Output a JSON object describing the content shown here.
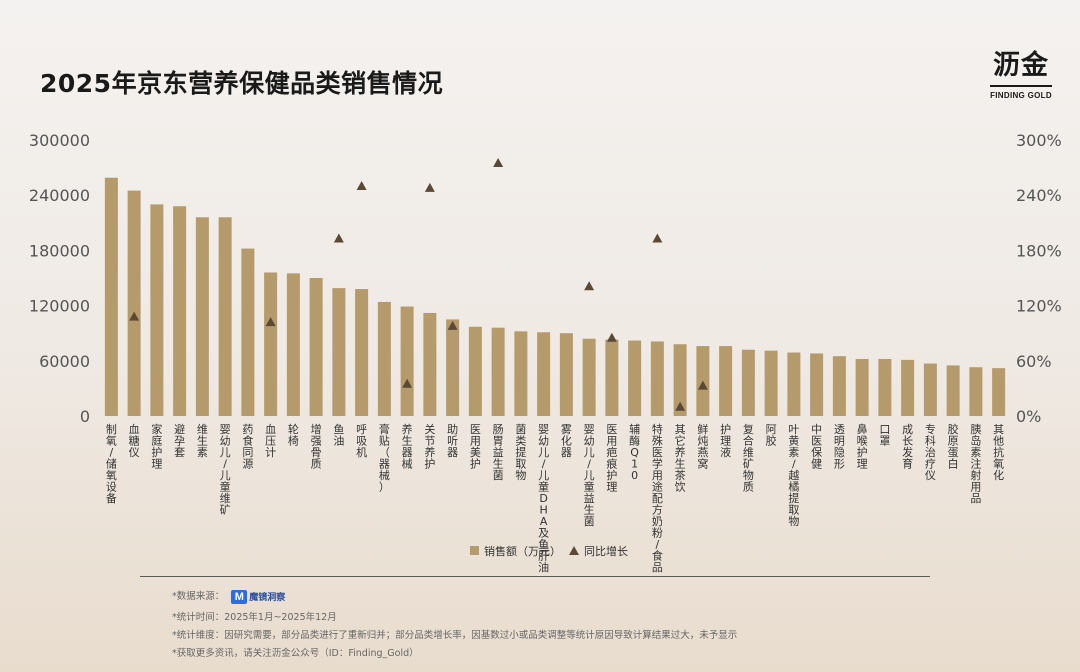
{
  "page": {
    "title": "2025年京东营养保健品类销售情况",
    "logo_main": "沥金",
    "logo_sub": "FINDING GOLD"
  },
  "footer": {
    "source_label": "*数据来源：",
    "source_name": "魔镜洞察",
    "period": "*统计时间：2025年1月~2025年12月",
    "dimension": "*统计维度：因研究需要，部分品类进行了重新归并；部分品类增长率，因基数过小或品类调整等统计原因导致计算结果过大，未予显示",
    "more": "*获取更多资讯，请关注沥金公众号（ID：Finding_Gold）"
  },
  "colors": {
    "bar": "#b59a6b",
    "marker": "#5a4a35",
    "axis_text": "#555555",
    "grid": "#d8d2ca"
  },
  "chart_data": {
    "type": "bar",
    "categories": [
      "制氧/储氧设备",
      "血糖仪",
      "家庭护理",
      "避孕套",
      "维生素",
      "婴幼儿/儿童维矿",
      "药食同源",
      "血压计",
      "轮椅",
      "增强骨质",
      "鱼油",
      "呼吸机",
      "膏贴（器械）",
      "养生器械",
      "关节养护",
      "助听器",
      "医用美护",
      "肠胃益生菌",
      "菌类提取物",
      "婴幼儿/儿童DHA及鱼肝油",
      "雾化器",
      "婴幼儿/儿童益生菌",
      "医用疤痕护理",
      "辅酶Q10",
      "特殊医学用途配方奶粉/食品",
      "其它养生茶饮",
      "鲜炖燕窝",
      "护理液",
      "复合维矿物质",
      "阿胶",
      "叶黄素/越橘提取物",
      "中医保健",
      "透明隐形",
      "鼻喉护理",
      "口罩",
      "成长发育",
      "专科治疗仪",
      "胶原蛋白",
      "胰岛素注射用品",
      "其他抗氧化"
    ],
    "series": [
      {
        "name": "销售额（万元）",
        "type": "bar",
        "axis": "left",
        "values": [
          259000,
          245000,
          230000,
          228000,
          216000,
          216000,
          182000,
          156000,
          155000,
          150000,
          139000,
          138000,
          124000,
          119000,
          112000,
          105000,
          97000,
          96000,
          92000,
          91000,
          90000,
          84000,
          83000,
          82000,
          81000,
          78000,
          76000,
          76000,
          72000,
          71000,
          69000,
          68000,
          65000,
          62000,
          62000,
          61000,
          57000,
          55000,
          53000,
          52000
        ]
      },
      {
        "name": "同比增长",
        "type": "scatter",
        "axis": "right",
        "values": [
          null,
          108,
          null,
          null,
          null,
          null,
          null,
          102,
          null,
          null,
          193,
          250,
          null,
          35,
          248,
          98,
          null,
          275,
          null,
          null,
          null,
          141,
          85,
          null,
          193,
          10,
          33,
          null,
          null,
          null,
          null,
          null,
          null,
          null,
          null,
          null,
          null,
          null,
          null,
          null
        ]
      }
    ],
    "y_left": {
      "min": 0,
      "max": 300000,
      "ticks": [
        "0",
        "60000",
        "120000",
        "180000",
        "240000",
        "300000"
      ]
    },
    "y_right": {
      "min": 0,
      "max": 300,
      "ticks": [
        "0%",
        "60%",
        "120%",
        "180%",
        "240%",
        "300%"
      ]
    },
    "legend": {
      "position": "bottom-center",
      "items": [
        "销售额（万元）",
        "同比增长"
      ]
    },
    "grid": false
  }
}
